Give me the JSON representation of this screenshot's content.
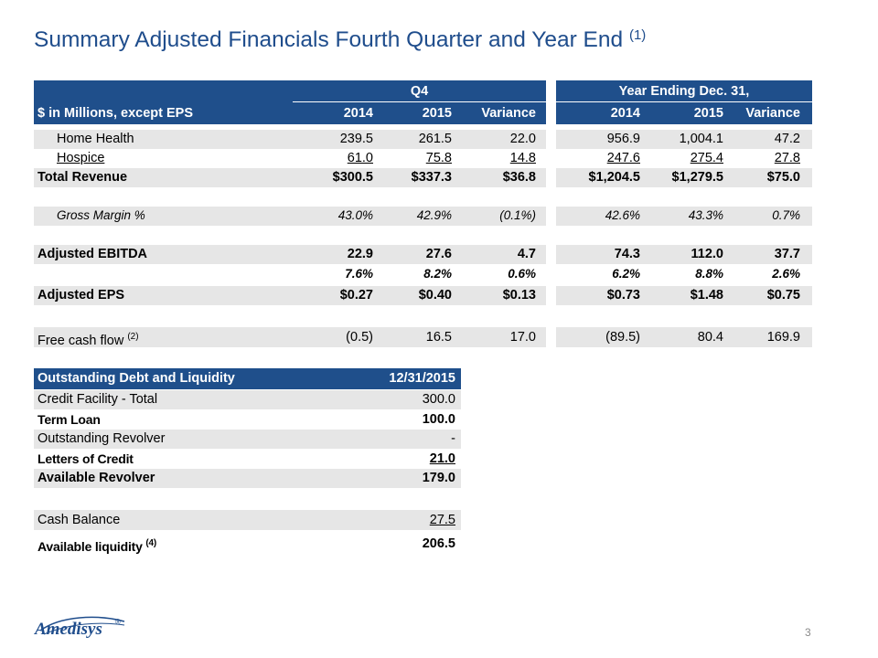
{
  "title": {
    "main": "Summary Adjusted Financials Fourth Quarter and Year End",
    "note": "(1)"
  },
  "summary": {
    "group_q4": "Q4",
    "group_year": "Year Ending Dec. 31,",
    "label_header": "$ in Millions, except EPS",
    "col_headers": [
      "2014",
      "2015",
      "Variance",
      "2014",
      "2015",
      "Variance"
    ],
    "rows": [
      {
        "label": "Home Health",
        "values": [
          "239.5",
          "261.5",
          "22.0",
          "956.9",
          "1,004.1",
          "47.2"
        ]
      },
      {
        "label": "Hospice",
        "values": [
          "61.0",
          "75.8",
          "14.8",
          "247.6",
          "275.4",
          "27.8"
        ]
      },
      {
        "label": "Total Revenue",
        "values": [
          "$300.5",
          "$337.3",
          "$36.8",
          "$1,204.5",
          "$1,279.5",
          "$75.0"
        ]
      },
      {
        "label": "Gross Margin %",
        "values": [
          "43.0%",
          "42.9%",
          "(0.1%)",
          "42.6%",
          "43.3%",
          "0.7%"
        ]
      },
      {
        "label": "Adjusted EBITDA",
        "values": [
          "22.9",
          "27.6",
          "4.7",
          "74.3",
          "112.0",
          "37.7"
        ]
      },
      {
        "label": "",
        "values": [
          "7.6%",
          "8.2%",
          "0.6%",
          "6.2%",
          "8.8%",
          "2.6%"
        ]
      },
      {
        "label": "Adjusted EPS",
        "values": [
          "$0.27",
          "$0.40",
          "$0.13",
          "$0.73",
          "$1.48",
          "$0.75"
        ]
      },
      {
        "label": "Free cash flow",
        "note": "(2)",
        "values": [
          "(0.5)",
          "16.5",
          "17.0",
          "(89.5)",
          "80.4",
          "169.9"
        ]
      }
    ]
  },
  "debt": {
    "header_label": "Outstanding Debt and Liquidity",
    "header_date": "12/31/2015",
    "rows": [
      {
        "label": "Credit Facility - Total",
        "value": "300.0"
      },
      {
        "label": "Term Loan",
        "value": "100.0"
      },
      {
        "label": "Outstanding Revolver",
        "value": "-"
      },
      {
        "label": "Letters of Credit",
        "value": "21.0"
      },
      {
        "label": "Available Revolver",
        "value": "179.0"
      },
      {
        "label": "Cash Balance",
        "value": "27.5"
      },
      {
        "label": "Available liquidity",
        "note": "(4)",
        "value": "206.5"
      }
    ]
  },
  "logo": {
    "text": "Amedisys",
    "mark": "®",
    "color": "#1f4d8c"
  },
  "page_number": "3"
}
